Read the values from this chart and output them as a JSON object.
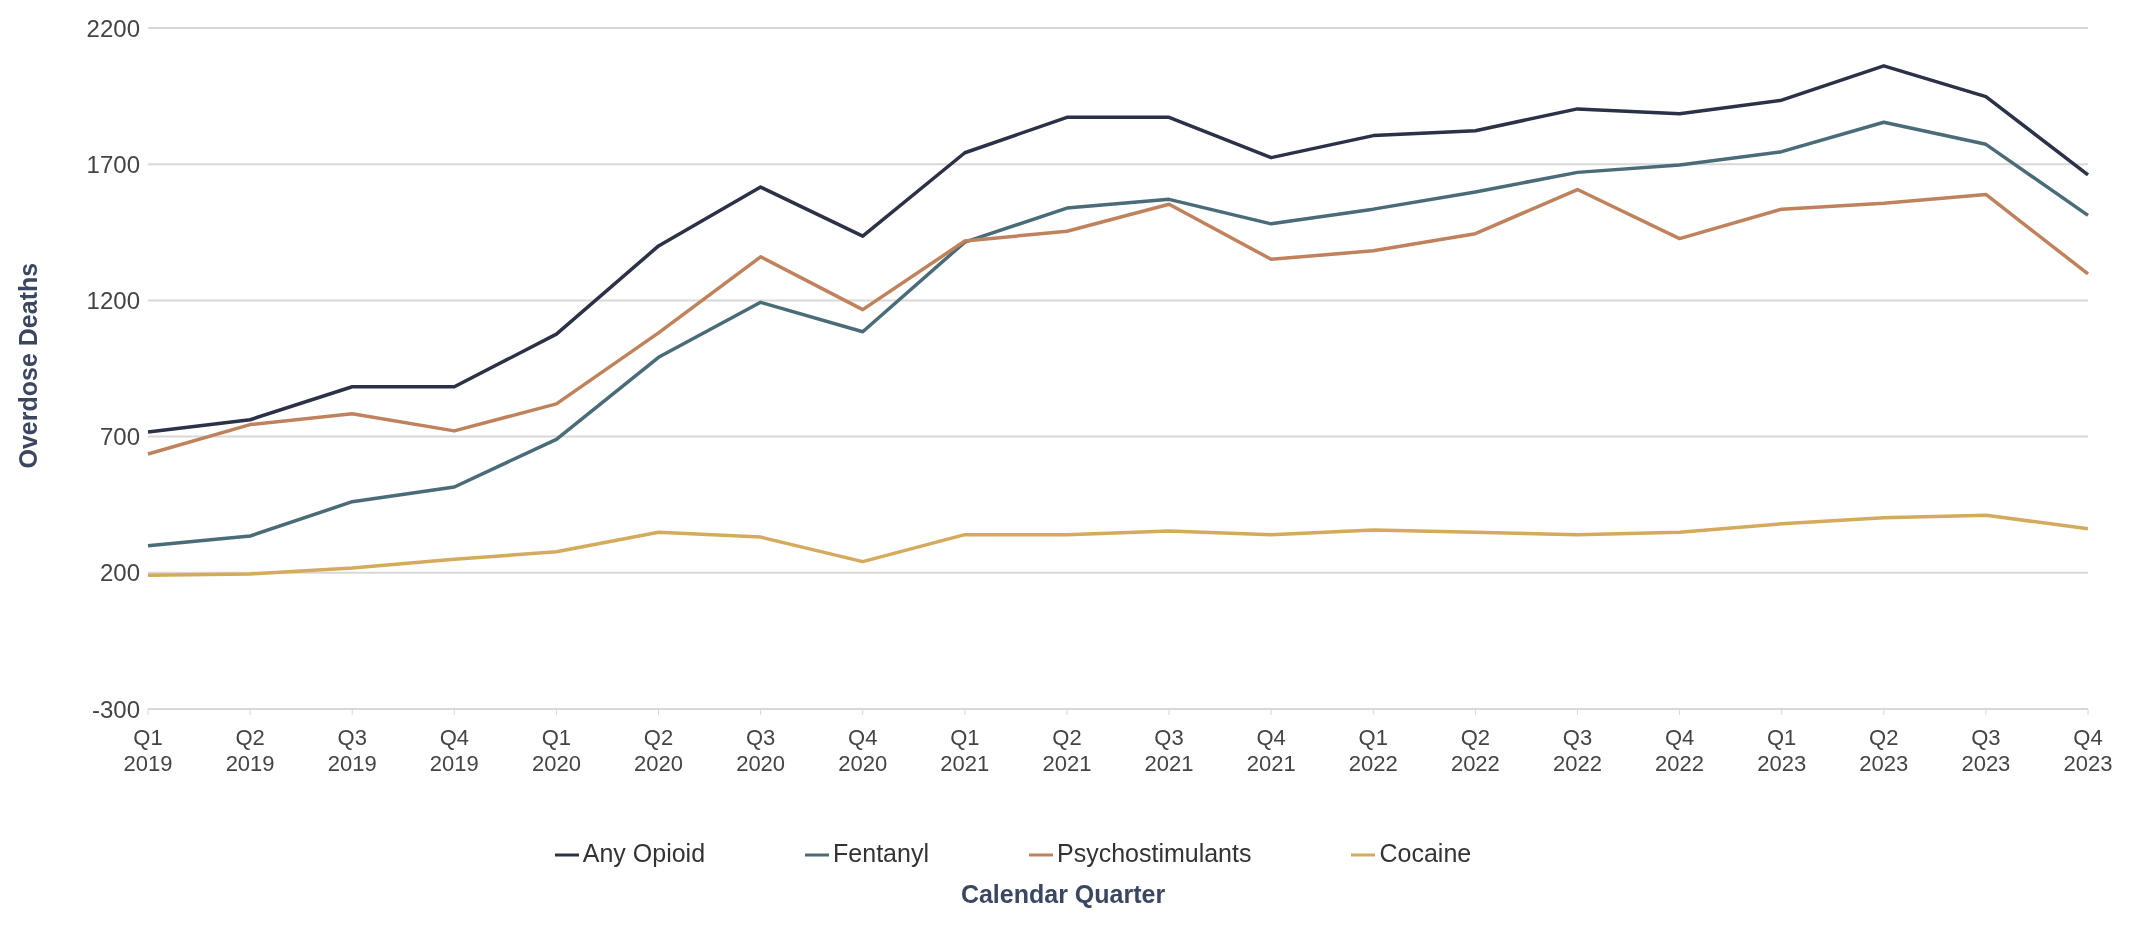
{
  "chart_data": {
    "type": "line",
    "xlabel": "Calendar Quarter",
    "ylabel": "Overdose Deaths",
    "categories": [
      "Q1 2019",
      "Q2 2019",
      "Q3 2019",
      "Q4 2019",
      "Q1 2020",
      "Q2 2020",
      "Q3 2020",
      "Q4 2020",
      "Q1 2021",
      "Q2 2021",
      "Q3 2021",
      "Q4 2021",
      "Q1 2022",
      "Q2 2022",
      "Q3 2022",
      "Q4 2022",
      "Q1 2023",
      "Q2 2023",
      "Q3 2023",
      "Q4 2023"
    ],
    "series": [
      {
        "name": "Any Opioid",
        "color": "#2b3147",
        "values": [
          717,
          762,
          883,
          883,
          1076,
          1400,
          1616,
          1436,
          1742,
          1872,
          1872,
          1724,
          1805,
          1823,
          1903,
          1885,
          1935,
          2061,
          1948,
          1661
        ]
      },
      {
        "name": "Fentanyl",
        "color": "#4a6b78",
        "values": [
          299,
          335,
          461,
          515,
          690,
          991,
          1193,
          1085,
          1414,
          1539,
          1571,
          1481,
          1535,
          1598,
          1670,
          1697,
          1746,
          1854,
          1773,
          1512
        ]
      },
      {
        "name": "Psychostimulants",
        "color": "#c0825c",
        "values": [
          636,
          744,
          784,
          721,
          820,
          1081,
          1360,
          1166,
          1418,
          1454,
          1553,
          1351,
          1382,
          1445,
          1607,
          1427,
          1535,
          1557,
          1589,
          1297
        ]
      },
      {
        "name": "Cocaine",
        "color": "#d4aa5c",
        "values": [
          191,
          196,
          218,
          250,
          277,
          349,
          331,
          241,
          340,
          340,
          353,
          340,
          357,
          349,
          340,
          349,
          380,
          402,
          411,
          362
        ]
      }
    ],
    "ylim": [
      -300,
      2200
    ],
    "yticks": [
      -300,
      200,
      700,
      1200,
      1700,
      2200
    ],
    "grid": "y",
    "legend": "bottom",
    "marker": "none",
    "line_style": "solid"
  }
}
